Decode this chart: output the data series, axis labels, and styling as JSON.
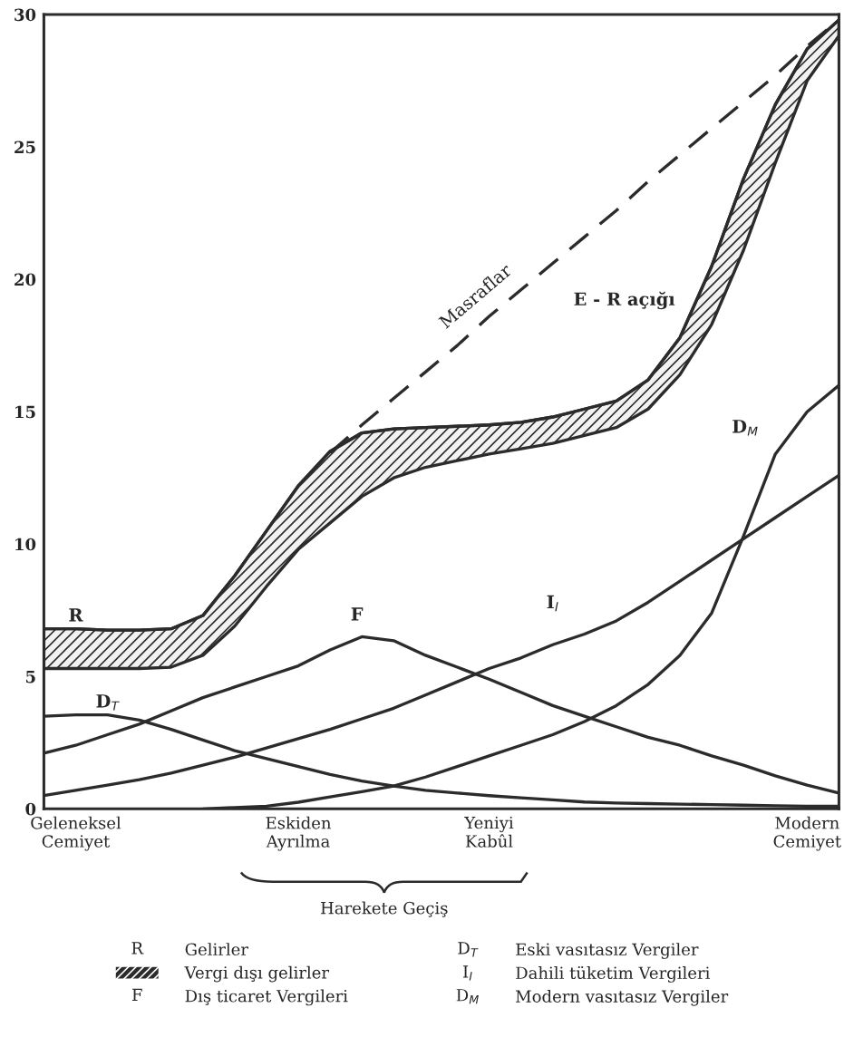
{
  "chart_data": {
    "type": "line",
    "categories": [
      null,
      "Geleneksel\nCemiyet",
      null,
      null,
      null,
      null,
      null,
      null,
      "Eskiden\nAyrılma",
      null,
      null,
      null,
      null,
      null,
      "Yeniyi\nKabûl",
      null,
      null,
      null,
      null,
      null,
      null,
      null,
      null,
      null,
      "Modern\nCemiyet",
      null
    ],
    "ylim": [
      0,
      30
    ],
    "yticks": [
      0,
      5,
      10,
      15,
      20,
      25,
      30
    ],
    "legend": "bottom",
    "series": [
      {
        "name": "R",
        "color": "#2b2b2b",
        "values": [
          6.8,
          6.8,
          6.75,
          6.75,
          6.8,
          7.3,
          8.8,
          10.5,
          12.2,
          13.5,
          14.2,
          14.35,
          14.4,
          14.45,
          14.5,
          14.6,
          14.8,
          15.1,
          15.4,
          16.2,
          17.8,
          20.5,
          23.8,
          26.6,
          28.7,
          29.8
        ],
        "lower": [
          5.3,
          5.3,
          5.3,
          5.3,
          5.35,
          5.8,
          6.9,
          8.4,
          9.8,
          10.8,
          11.8,
          12.5,
          12.9,
          13.15,
          13.4,
          13.6,
          13.8,
          14.1,
          14.4,
          15.1,
          16.4,
          18.3,
          21.1,
          24.4,
          27.5,
          29.2
        ],
        "upper": [
          6.8,
          6.8,
          6.75,
          6.75,
          6.8,
          7.3,
          8.8,
          10.5,
          12.2,
          13.5,
          14.2,
          14.35,
          14.4,
          14.45,
          14.5,
          14.6,
          14.8,
          15.1,
          15.4,
          16.2,
          17.8,
          20.5,
          23.8,
          26.6,
          28.7,
          29.8
        ]
      },
      {
        "name": "F",
        "color": "#2b2b2b",
        "values": [
          2.1,
          2.4,
          2.8,
          3.2,
          3.7,
          4.2,
          4.6,
          5.0,
          5.4,
          6.0,
          6.5,
          6.35,
          5.8,
          5.35,
          4.9,
          4.4,
          3.9,
          3.5,
          3.1,
          2.7,
          2.4,
          2.0,
          1.65,
          1.25,
          0.9,
          0.6
        ]
      },
      {
        "name": "D$_{T}$",
        "color": "#2b2b2b",
        "values": [
          3.5,
          3.55,
          3.55,
          3.35,
          3.0,
          2.6,
          2.2,
          1.9,
          1.6,
          1.3,
          1.05,
          0.86,
          0.7,
          0.6,
          0.5,
          0.42,
          0.34,
          0.26,
          0.22,
          0.2,
          0.18,
          0.16,
          0.14,
          0.12,
          0.1,
          0.1
        ]
      },
      {
        "name": "I$_{I}$",
        "color": "#2b2b2b",
        "values": [
          0.5,
          0.7,
          0.9,
          1.1,
          1.35,
          1.65,
          1.95,
          2.3,
          2.65,
          3.0,
          3.4,
          3.8,
          4.3,
          4.8,
          5.3,
          5.7,
          6.2,
          6.6,
          7.1,
          7.8,
          8.6,
          9.4,
          10.2,
          11.0,
          11.8,
          12.6
        ]
      },
      {
        "name": "D$_{M}$",
        "color": "#2b2b2b",
        "values": [
          null,
          null,
          null,
          null,
          null,
          0,
          0.05,
          0.1,
          0.25,
          0.45,
          0.65,
          0.86,
          1.2,
          1.6,
          2.0,
          2.4,
          2.8,
          3.3,
          3.9,
          4.7,
          5.8,
          7.4,
          10.3,
          13.4,
          15.0,
          16.0
        ]
      },
      {
        "name": "Masraflar",
        "line_style": "dashed",
        "color": "#2b2b2b",
        "values": [
          null,
          null,
          null,
          null,
          null,
          null,
          null,
          null,
          null,
          13.45,
          14.5,
          15.5,
          16.5,
          17.5,
          18.6,
          19.6,
          20.6,
          21.6,
          22.6,
          23.7,
          24.7,
          25.7,
          26.7,
          27.7,
          28.8,
          29.8
        ]
      }
    ],
    "annotations": [
      "Gelirler",
      "Vergi dışı gelirler",
      "Dış ticaret Vergileri",
      "Eski vasıtasız Vergiler",
      "Dahili tüketim Vergileri",
      "Modern vasıtasız Vergiler",
      "E - R açığı",
      "Harekete Geçiş"
    ]
  }
}
